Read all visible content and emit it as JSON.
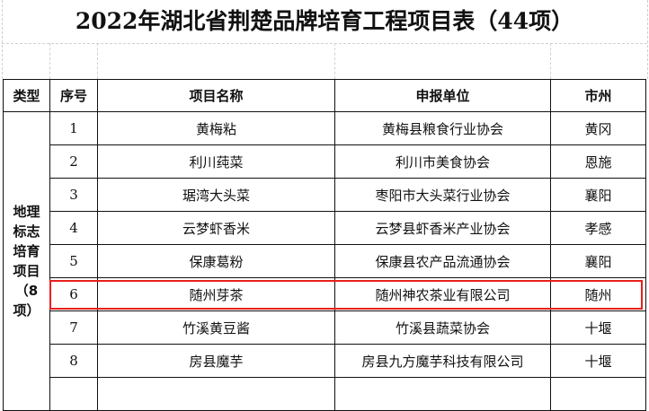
{
  "title": "2022年湖北省荆楚品牌培育工程项目表（44项）",
  "headers": [
    "类型",
    "序号",
    "项目名称",
    "申报单位",
    "市州"
  ],
  "category": "地理标志培育项目（8项）",
  "rows": [
    {
      "no": "1",
      "name": "黄梅粘",
      "unit": "黄梅县粮食行业协会",
      "city": "黄冈"
    },
    {
      "no": "2",
      "name": "利川莼菜",
      "unit": "利川市美食协会",
      "city": "恩施"
    },
    {
      "no": "3",
      "name": "琚湾大头菜",
      "unit": "枣阳市大头菜行业协会",
      "city": "襄阳"
    },
    {
      "no": "4",
      "name": "云梦虾香米",
      "unit": "云梦县虾香米产业协会",
      "city": "孝感"
    },
    {
      "no": "5",
      "name": "保康葛粉",
      "unit": "保康县农产品流通协会",
      "city": "襄阳"
    },
    {
      "no": "6",
      "name": "随州芽茶",
      "unit": "随州神农茶业有限公司",
      "city": "随州"
    },
    {
      "no": "7",
      "name": "竹溪黄豆酱",
      "unit": "竹溪县蔬菜协会",
      "city": "十堰"
    },
    {
      "no": "8",
      "name": "房县魔芋",
      "unit": "房县九方魔芋科技有限公司",
      "city": "十堰"
    }
  ],
  "highlight_color": "#e8201c",
  "highlighted_row": "6"
}
